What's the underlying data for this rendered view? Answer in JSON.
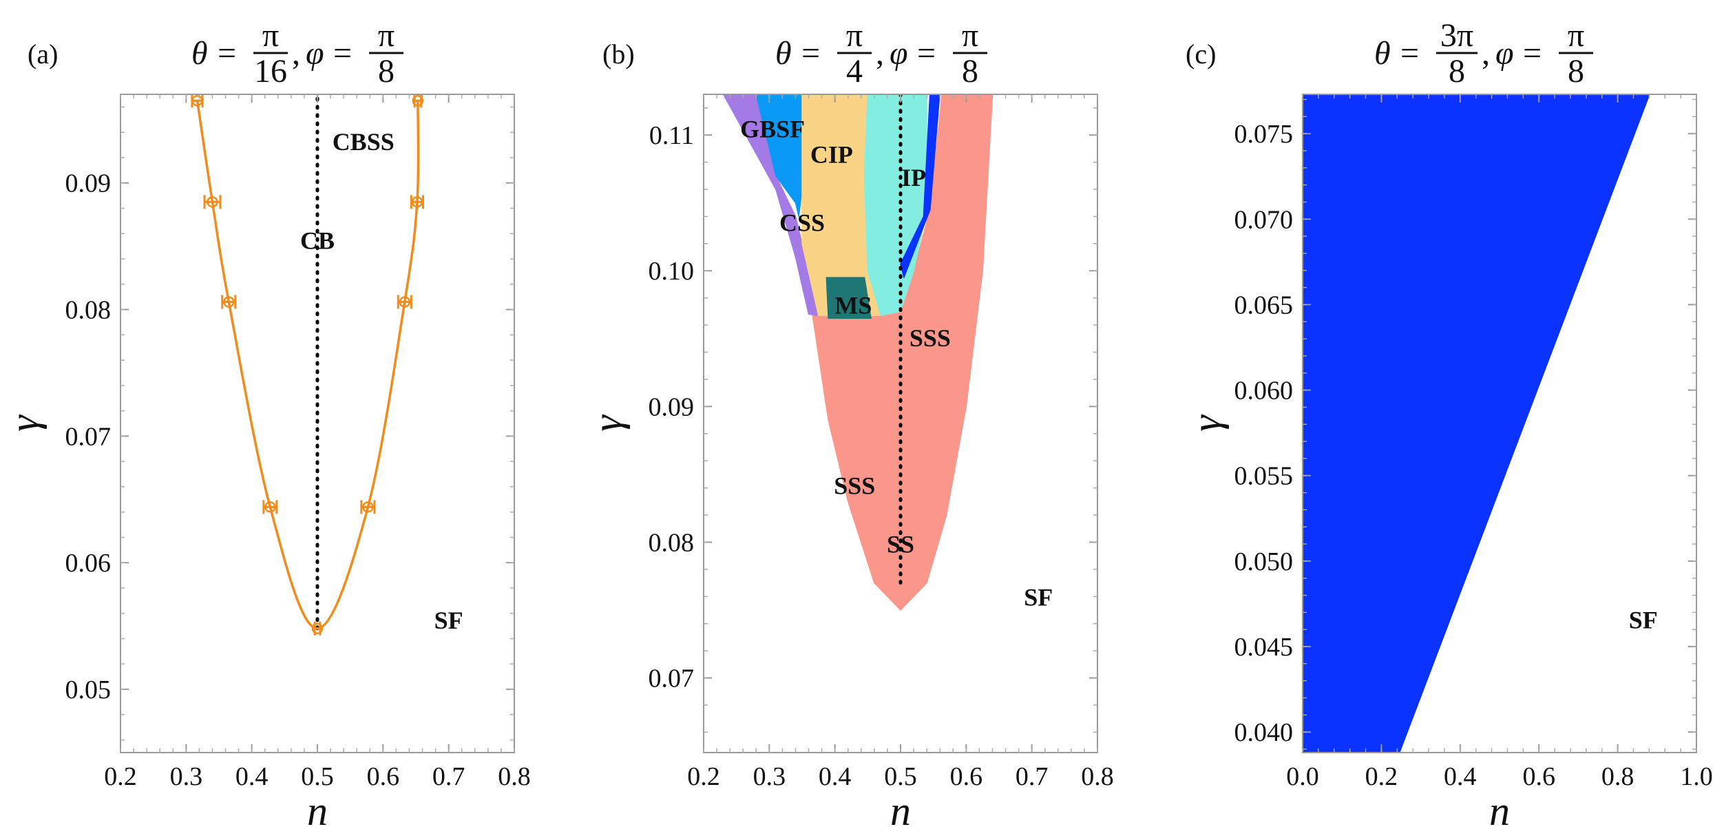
{
  "chart_data": [
    {
      "panel": "(a)",
      "title": {
        "theta_num": "π",
        "theta_den": "16",
        "phi_num": "π",
        "phi_den": "8"
      },
      "type": "line",
      "xlabel": "n",
      "ylabel": "γ",
      "xlim": [
        0.2,
        0.8
      ],
      "ylim": [
        0.045,
        0.097
      ],
      "xticks": [
        0.2,
        0.3,
        0.4,
        0.5,
        0.6,
        0.7,
        0.8
      ],
      "xtick_labels": [
        "0.2",
        "0.3",
        "0.4",
        "0.5",
        "0.6",
        "0.7",
        "0.8"
      ],
      "yticks": [
        0.05,
        0.06,
        0.07,
        0.08,
        0.09
      ],
      "ytick_labels": [
        "0.05",
        "0.06",
        "0.07",
        "0.08",
        "0.09"
      ],
      "series": [
        {
          "color": "#f28b1b",
          "points": [
            {
              "x": 0.317,
              "y": 0.0965,
              "xerr": 0.008
            },
            {
              "x": 0.34,
              "y": 0.0885,
              "xerr": 0.012
            },
            {
              "x": 0.365,
              "y": 0.0806,
              "xerr": 0.01
            },
            {
              "x": 0.428,
              "y": 0.0644,
              "xerr": 0.01
            },
            {
              "x": 0.5,
              "y": 0.0548,
              "xerr": 0.004
            },
            {
              "x": 0.577,
              "y": 0.0644,
              "xerr": 0.01
            },
            {
              "x": 0.633,
              "y": 0.0806,
              "xerr": 0.01
            },
            {
              "x": 0.652,
              "y": 0.0885,
              "xerr": 0.009
            },
            {
              "x": 0.653,
              "y": 0.0965,
              "xerr": 0.005
            }
          ]
        }
      ],
      "reference_line": {
        "x": 0.5,
        "y_from": 0.0548,
        "y_to": 0.097,
        "style": "dotted"
      },
      "region_labels": [
        {
          "text": "CBSS",
          "x": 0.57,
          "y": 0.0933
        },
        {
          "text": "CB",
          "x": 0.5,
          "y": 0.0855
        },
        {
          "text": "SF",
          "x": 0.7,
          "y": 0.0555
        }
      ]
    },
    {
      "panel": "(b)",
      "title": {
        "theta_num": "π",
        "theta_den": "4",
        "phi_num": "π",
        "phi_den": "8"
      },
      "type": "area",
      "xlabel": "n",
      "ylabel": "γ",
      "xlim": [
        0.2,
        0.8
      ],
      "ylim": [
        0.0645,
        0.113
      ],
      "xticks": [
        0.2,
        0.3,
        0.4,
        0.5,
        0.6,
        0.7,
        0.8
      ],
      "xtick_labels": [
        "0.2",
        "0.3",
        "0.4",
        "0.5",
        "0.6",
        "0.7",
        "0.8"
      ],
      "yticks": [
        0.07,
        0.08,
        0.09,
        0.1,
        0.11
      ],
      "ytick_labels": [
        "0.07",
        "0.08",
        "0.09",
        "0.10",
        "0.11"
      ],
      "regions": [
        {
          "name": "SSS",
          "color": "#fa968a",
          "polygon": [
            [
              0.5,
              0.075
            ],
            [
              0.46,
              0.077
            ],
            [
              0.42,
              0.083
            ],
            [
              0.39,
              0.089
            ],
            [
              0.365,
              0.097
            ],
            [
              0.36,
              0.1
            ],
            [
              0.52,
              0.1
            ],
            [
              0.545,
              0.1045
            ],
            [
              0.563,
              0.113
            ],
            [
              0.64,
              0.113
            ],
            [
              0.625,
              0.1
            ],
            [
              0.6,
              0.09
            ],
            [
              0.57,
              0.082
            ],
            [
              0.54,
              0.077
            ]
          ]
        },
        {
          "name": "CSS",
          "color": "#a47be6",
          "polygon": [
            [
              0.23,
              0.113
            ],
            [
              0.28,
              0.113
            ],
            [
              0.31,
              0.107
            ],
            [
              0.34,
              0.104
            ],
            [
              0.35,
              0.102
            ],
            [
              0.375,
              0.0967
            ],
            [
              0.36,
              0.0968
            ],
            [
              0.34,
              0.101
            ],
            [
              0.31,
              0.106
            ]
          ]
        },
        {
          "name": "GBSF",
          "color": "#0a9af5",
          "polygon": [
            [
              0.28,
              0.113
            ],
            [
              0.35,
              0.113
            ],
            [
              0.35,
              0.106
            ],
            [
              0.345,
              0.104
            ],
            [
              0.34,
              0.105
            ],
            [
              0.31,
              0.107
            ]
          ]
        },
        {
          "name": "CIP",
          "color": "#f9d487",
          "polygon": [
            [
              0.35,
              0.113
            ],
            [
              0.39,
              0.113
            ],
            [
              0.39,
              0.1
            ],
            [
              0.375,
              0.0967
            ],
            [
              0.35,
              0.102
            ],
            [
              0.35,
              0.106
            ]
          ]
        },
        {
          "name": "CIP",
          "color": "#f9d487",
          "polygon": [
            [
              0.39,
              0.113
            ],
            [
              0.45,
              0.113
            ],
            [
              0.445,
              0.107
            ],
            [
              0.45,
              0.1
            ],
            [
              0.47,
              0.0967
            ],
            [
              0.375,
              0.0967
            ],
            [
              0.39,
              0.1
            ]
          ]
        },
        {
          "name": "IP",
          "color": "#84ede1",
          "polygon": [
            [
              0.45,
              0.113
            ],
            [
              0.54,
              0.113
            ],
            [
              0.54,
              0.1045
            ],
            [
              0.52,
              0.1
            ],
            [
              0.5,
              0.097
            ],
            [
              0.47,
              0.0967
            ],
            [
              0.45,
              0.1
            ],
            [
              0.445,
              0.107
            ]
          ]
        },
        {
          "name": "MS",
          "color": "#1e7774",
          "polygon": [
            [
              0.387,
              0.0995
            ],
            [
              0.445,
              0.0995
            ],
            [
              0.455,
              0.0965
            ],
            [
              0.39,
              0.0965
            ]
          ]
        },
        {
          "name": "IP",
          "color": "#0a33ff",
          "polygon": [
            [
              0.545,
              0.1132
            ],
            [
              0.56,
              0.1132
            ],
            [
              0.545,
              0.1045
            ],
            [
              0.505,
              0.0995
            ],
            [
              0.5,
              0.1005
            ],
            [
              0.535,
              0.104
            ]
          ]
        }
      ],
      "reference_line": {
        "x": 0.5,
        "y_from": 0.077,
        "y_to": 0.113,
        "style": "dotted"
      },
      "region_labels": [
        {
          "text": "GBSF",
          "x": 0.305,
          "y": 0.1105
        },
        {
          "text": "CIP",
          "x": 0.395,
          "y": 0.1086
        },
        {
          "text": "IP",
          "x": 0.52,
          "y": 0.1069
        },
        {
          "text": "CSS",
          "x": 0.35,
          "y": 0.1036
        },
        {
          "text": "MS",
          "x": 0.428,
          "y": 0.0975
        },
        {
          "text": "SSS",
          "x": 0.545,
          "y": 0.0951
        },
        {
          "text": "SSS",
          "x": 0.43,
          "y": 0.0842
        },
        {
          "text": "SS",
          "x": 0.5,
          "y": 0.0799
        },
        {
          "text": "SF",
          "x": 0.71,
          "y": 0.076
        }
      ]
    },
    {
      "panel": "(c)",
      "title": {
        "theta_num": "3π",
        "theta_den": "8",
        "phi_num": "π",
        "phi_den": "8"
      },
      "type": "area",
      "xlabel": "n",
      "ylabel": "γ",
      "xlim": [
        0.0,
        1.0
      ],
      "ylim": [
        0.0388,
        0.0773
      ],
      "xticks": [
        0.0,
        0.2,
        0.4,
        0.6,
        0.8,
        1.0
      ],
      "xtick_labels": [
        "0.0",
        "0.2",
        "0.4",
        "0.6",
        "0.8",
        "1.0"
      ],
      "yticks": [
        0.04,
        0.045,
        0.05,
        0.055,
        0.06,
        0.065,
        0.07,
        0.075
      ],
      "ytick_labels": [
        "0.040",
        "0.045",
        "0.050",
        "0.055",
        "0.060",
        "0.065",
        "0.070",
        "0.075"
      ],
      "regions": [
        {
          "name": "",
          "color": "#0a33ff",
          "polygon": [
            [
              0.0,
              0.0388
            ],
            [
              0.246,
              0.0388
            ],
            [
              0.881,
              0.0773
            ],
            [
              0.0,
              0.0773
            ]
          ]
        }
      ],
      "region_labels": [
        {
          "text": "SF",
          "x": 0.865,
          "y": 0.0466
        }
      ]
    }
  ]
}
